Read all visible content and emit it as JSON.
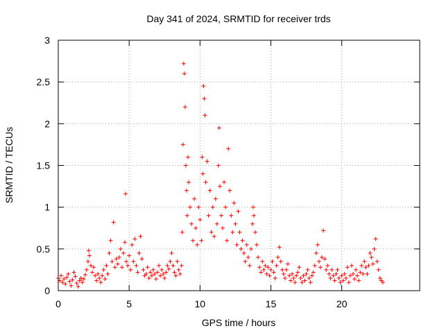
{
  "chart_data": {
    "type": "scatter",
    "title": "Day 341 of 2024, SRMTID for receiver trds",
    "xlabel": "GPS time / hours",
    "ylabel": "SRMTID / TECUs",
    "xlim": [
      0,
      25.5
    ],
    "ylim": [
      0,
      3
    ],
    "x_ticks": [
      0,
      5,
      10,
      15,
      20
    ],
    "x_tick_labels": [
      "0",
      "5",
      "10",
      "15",
      "20"
    ],
    "y_ticks": [
      0,
      0.5,
      1,
      1.5,
      2,
      2.5,
      3
    ],
    "y_tick_labels": [
      "0",
      "0.5",
      "1",
      "1.5",
      "2",
      "2.5",
      "3"
    ],
    "grid": true,
    "marker": "+",
    "series": [
      {
        "name": "SRMTID",
        "color": "#ff0000",
        "points": [
          [
            0.0,
            0.15
          ],
          [
            0.1,
            0.12
          ],
          [
            0.2,
            0.18
          ],
          [
            0.3,
            0.1
          ],
          [
            0.4,
            0.14
          ],
          [
            0.5,
            0.08
          ],
          [
            0.6,
            0.16
          ],
          [
            0.7,
            0.2
          ],
          [
            0.8,
            0.11
          ],
          [
            0.9,
            0.06
          ],
          [
            1.0,
            0.13
          ],
          [
            1.1,
            0.22
          ],
          [
            1.2,
            0.17
          ],
          [
            1.3,
            0.09
          ],
          [
            1.4,
            0.05
          ],
          [
            1.5,
            0.12
          ],
          [
            1.6,
            0.15
          ],
          [
            1.7,
            0.1
          ],
          [
            1.8,
            0.14
          ],
          [
            1.9,
            0.19
          ],
          [
            2.0,
            0.25
          ],
          [
            2.1,
            0.35
          ],
          [
            2.15,
            0.48
          ],
          [
            2.2,
            0.42
          ],
          [
            2.3,
            0.3
          ],
          [
            2.4,
            0.22
          ],
          [
            2.5,
            0.28
          ],
          [
            2.6,
            0.18
          ],
          [
            2.7,
            0.12
          ],
          [
            2.8,
            0.2
          ],
          [
            2.9,
            0.15
          ],
          [
            3.0,
            0.1
          ],
          [
            3.1,
            0.18
          ],
          [
            3.2,
            0.25
          ],
          [
            3.3,
            0.14
          ],
          [
            3.4,
            0.3
          ],
          [
            3.5,
            0.2
          ],
          [
            3.6,
            0.45
          ],
          [
            3.7,
            0.6
          ],
          [
            3.8,
            0.35
          ],
          [
            3.9,
            0.82
          ],
          [
            4.0,
            0.28
          ],
          [
            4.1,
            0.38
          ],
          [
            4.2,
            0.32
          ],
          [
            4.3,
            0.4
          ],
          [
            4.4,
            0.5
          ],
          [
            4.5,
            0.28
          ],
          [
            4.6,
            0.45
          ],
          [
            4.7,
            0.58
          ],
          [
            4.75,
            1.16
          ],
          [
            4.8,
            0.35
          ],
          [
            4.9,
            0.3
          ],
          [
            5.0,
            0.42
          ],
          [
            5.1,
            0.25
          ],
          [
            5.2,
            0.55
          ],
          [
            5.3,
            0.35
          ],
          [
            5.4,
            0.62
          ],
          [
            5.5,
            0.3
          ],
          [
            5.6,
            0.22
          ],
          [
            5.7,
            0.45
          ],
          [
            5.8,
            0.65
          ],
          [
            5.9,
            0.38
          ],
          [
            6.0,
            0.25
          ],
          [
            6.1,
            0.18
          ],
          [
            6.2,
            0.2
          ],
          [
            6.3,
            0.28
          ],
          [
            6.4,
            0.15
          ],
          [
            6.5,
            0.22
          ],
          [
            6.6,
            0.18
          ],
          [
            6.7,
            0.25
          ],
          [
            6.8,
            0.2
          ],
          [
            6.9,
            0.14
          ],
          [
            7.0,
            0.22
          ],
          [
            7.1,
            0.3
          ],
          [
            7.2,
            0.18
          ],
          [
            7.3,
            0.25
          ],
          [
            7.4,
            0.2
          ],
          [
            7.5,
            0.15
          ],
          [
            7.6,
            0.22
          ],
          [
            7.7,
            0.3
          ],
          [
            7.8,
            0.26
          ],
          [
            7.9,
            0.35
          ],
          [
            8.0,
            0.45
          ],
          [
            8.1,
            0.3
          ],
          [
            8.2,
            0.22
          ],
          [
            8.3,
            0.18
          ],
          [
            8.4,
            0.35
          ],
          [
            8.5,
            0.25
          ],
          [
            8.6,
            0.2
          ],
          [
            8.7,
            0.3
          ],
          [
            8.75,
            0.7
          ],
          [
            8.8,
            1.75
          ],
          [
            8.85,
            2.72
          ],
          [
            8.9,
            2.6
          ],
          [
            8.95,
            2.2
          ],
          [
            9.0,
            1.5
          ],
          [
            9.05,
            1.2
          ],
          [
            9.1,
            0.9
          ],
          [
            9.15,
            1.6
          ],
          [
            9.2,
            1.3
          ],
          [
            9.3,
            1.0
          ],
          [
            9.4,
            0.8
          ],
          [
            9.5,
            0.6
          ],
          [
            9.6,
            1.1
          ],
          [
            9.7,
            0.75
          ],
          [
            9.8,
            0.55
          ],
          [
            9.9,
            1.0
          ],
          [
            10.0,
            0.85
          ],
          [
            10.1,
            0.6
          ],
          [
            10.15,
            1.6
          ],
          [
            10.2,
            1.4
          ],
          [
            10.25,
            2.45
          ],
          [
            10.3,
            2.3
          ],
          [
            10.35,
            2.1
          ],
          [
            10.4,
            1.3
          ],
          [
            10.5,
            1.55
          ],
          [
            10.6,
            0.9
          ],
          [
            10.7,
            1.2
          ],
          [
            10.8,
            0.7
          ],
          [
            10.9,
            1.0
          ],
          [
            11.0,
            0.65
          ],
          [
            11.1,
            1.1
          ],
          [
            11.2,
            0.8
          ],
          [
            11.3,
            1.5
          ],
          [
            11.35,
            1.95
          ],
          [
            11.4,
            1.25
          ],
          [
            11.5,
            0.9
          ],
          [
            11.6,
            0.75
          ],
          [
            11.7,
            1.3
          ],
          [
            11.8,
            1.0
          ],
          [
            11.9,
            0.6
          ],
          [
            12.0,
            1.7
          ],
          [
            12.1,
            1.2
          ],
          [
            12.2,
            0.9
          ],
          [
            12.3,
            0.7
          ],
          [
            12.4,
            1.05
          ],
          [
            12.5,
            0.8
          ],
          [
            12.6,
            0.55
          ],
          [
            12.7,
            0.95
          ],
          [
            12.8,
            0.7
          ],
          [
            12.9,
            0.5
          ],
          [
            13.0,
            0.6
          ],
          [
            13.1,
            0.45
          ],
          [
            13.2,
            0.35
          ],
          [
            13.3,
            0.55
          ],
          [
            13.4,
            0.4
          ],
          [
            13.5,
            0.3
          ],
          [
            13.6,
            0.5
          ],
          [
            13.7,
            0.8
          ],
          [
            13.75,
            1.0
          ],
          [
            13.8,
            0.9
          ],
          [
            13.9,
            0.7
          ],
          [
            14.0,
            0.55
          ],
          [
            14.1,
            0.4
          ],
          [
            14.2,
            0.28
          ],
          [
            14.3,
            0.22
          ],
          [
            14.4,
            0.35
          ],
          [
            14.5,
            0.25
          ],
          [
            14.6,
            0.3
          ],
          [
            14.7,
            0.2
          ],
          [
            14.8,
            0.28
          ],
          [
            14.9,
            0.18
          ],
          [
            15.0,
            0.25
          ],
          [
            15.1,
            0.35
          ],
          [
            15.2,
            0.22
          ],
          [
            15.3,
            0.15
          ],
          [
            15.4,
            0.3
          ],
          [
            15.5,
            0.4
          ],
          [
            15.6,
            0.52
          ],
          [
            15.7,
            0.35
          ],
          [
            15.8,
            0.25
          ],
          [
            15.9,
            0.2
          ],
          [
            16.0,
            0.15
          ],
          [
            16.1,
            0.25
          ],
          [
            16.2,
            0.32
          ],
          [
            16.3,
            0.18
          ],
          [
            16.4,
            0.12
          ],
          [
            16.5,
            0.2
          ],
          [
            16.6,
            0.15
          ],
          [
            16.7,
            0.1
          ],
          [
            16.8,
            0.18
          ],
          [
            16.9,
            0.22
          ],
          [
            17.0,
            0.28
          ],
          [
            17.1,
            0.15
          ],
          [
            17.2,
            0.1
          ],
          [
            17.3,
            0.18
          ],
          [
            17.4,
            0.12
          ],
          [
            17.5,
            0.2
          ],
          [
            17.6,
            0.25
          ],
          [
            17.7,
            0.15
          ],
          [
            17.8,
            0.1
          ],
          [
            17.9,
            0.18
          ],
          [
            18.0,
            0.22
          ],
          [
            18.1,
            0.3
          ],
          [
            18.2,
            0.45
          ],
          [
            18.3,
            0.55
          ],
          [
            18.4,
            0.35
          ],
          [
            18.5,
            0.28
          ],
          [
            18.6,
            0.4
          ],
          [
            18.7,
            0.72
          ],
          [
            18.8,
            0.38
          ],
          [
            18.9,
            0.25
          ],
          [
            19.0,
            0.3
          ],
          [
            19.1,
            0.2
          ],
          [
            19.2,
            0.15
          ],
          [
            19.3,
            0.25
          ],
          [
            19.4,
            0.18
          ],
          [
            19.5,
            0.12
          ],
          [
            19.6,
            0.2
          ],
          [
            19.7,
            0.25
          ],
          [
            19.8,
            0.15
          ],
          [
            19.9,
            0.1
          ],
          [
            20.0,
            0.18
          ],
          [
            20.1,
            0.12
          ],
          [
            20.2,
            0.2
          ],
          [
            20.3,
            0.15
          ],
          [
            20.4,
            0.28
          ],
          [
            20.5,
            0.1
          ],
          [
            20.6,
            0.18
          ],
          [
            20.7,
            0.3
          ],
          [
            20.8,
            0.2
          ],
          [
            20.9,
            0.14
          ],
          [
            21.0,
            0.25
          ],
          [
            21.1,
            0.18
          ],
          [
            21.2,
            0.12
          ],
          [
            21.3,
            0.22
          ],
          [
            21.4,
            0.3
          ],
          [
            21.5,
            0.2
          ],
          [
            21.6,
            0.35
          ],
          [
            21.7,
            0.28
          ],
          [
            21.8,
            0.2
          ],
          [
            21.9,
            0.3
          ],
          [
            22.0,
            0.45
          ],
          [
            22.1,
            0.4
          ],
          [
            22.2,
            0.32
          ],
          [
            22.3,
            0.5
          ],
          [
            22.4,
            0.62
          ],
          [
            22.5,
            0.35
          ],
          [
            22.6,
            0.25
          ],
          [
            22.7,
            0.15
          ],
          [
            22.8,
            0.12
          ],
          [
            22.9,
            0.1
          ]
        ]
      }
    ]
  }
}
